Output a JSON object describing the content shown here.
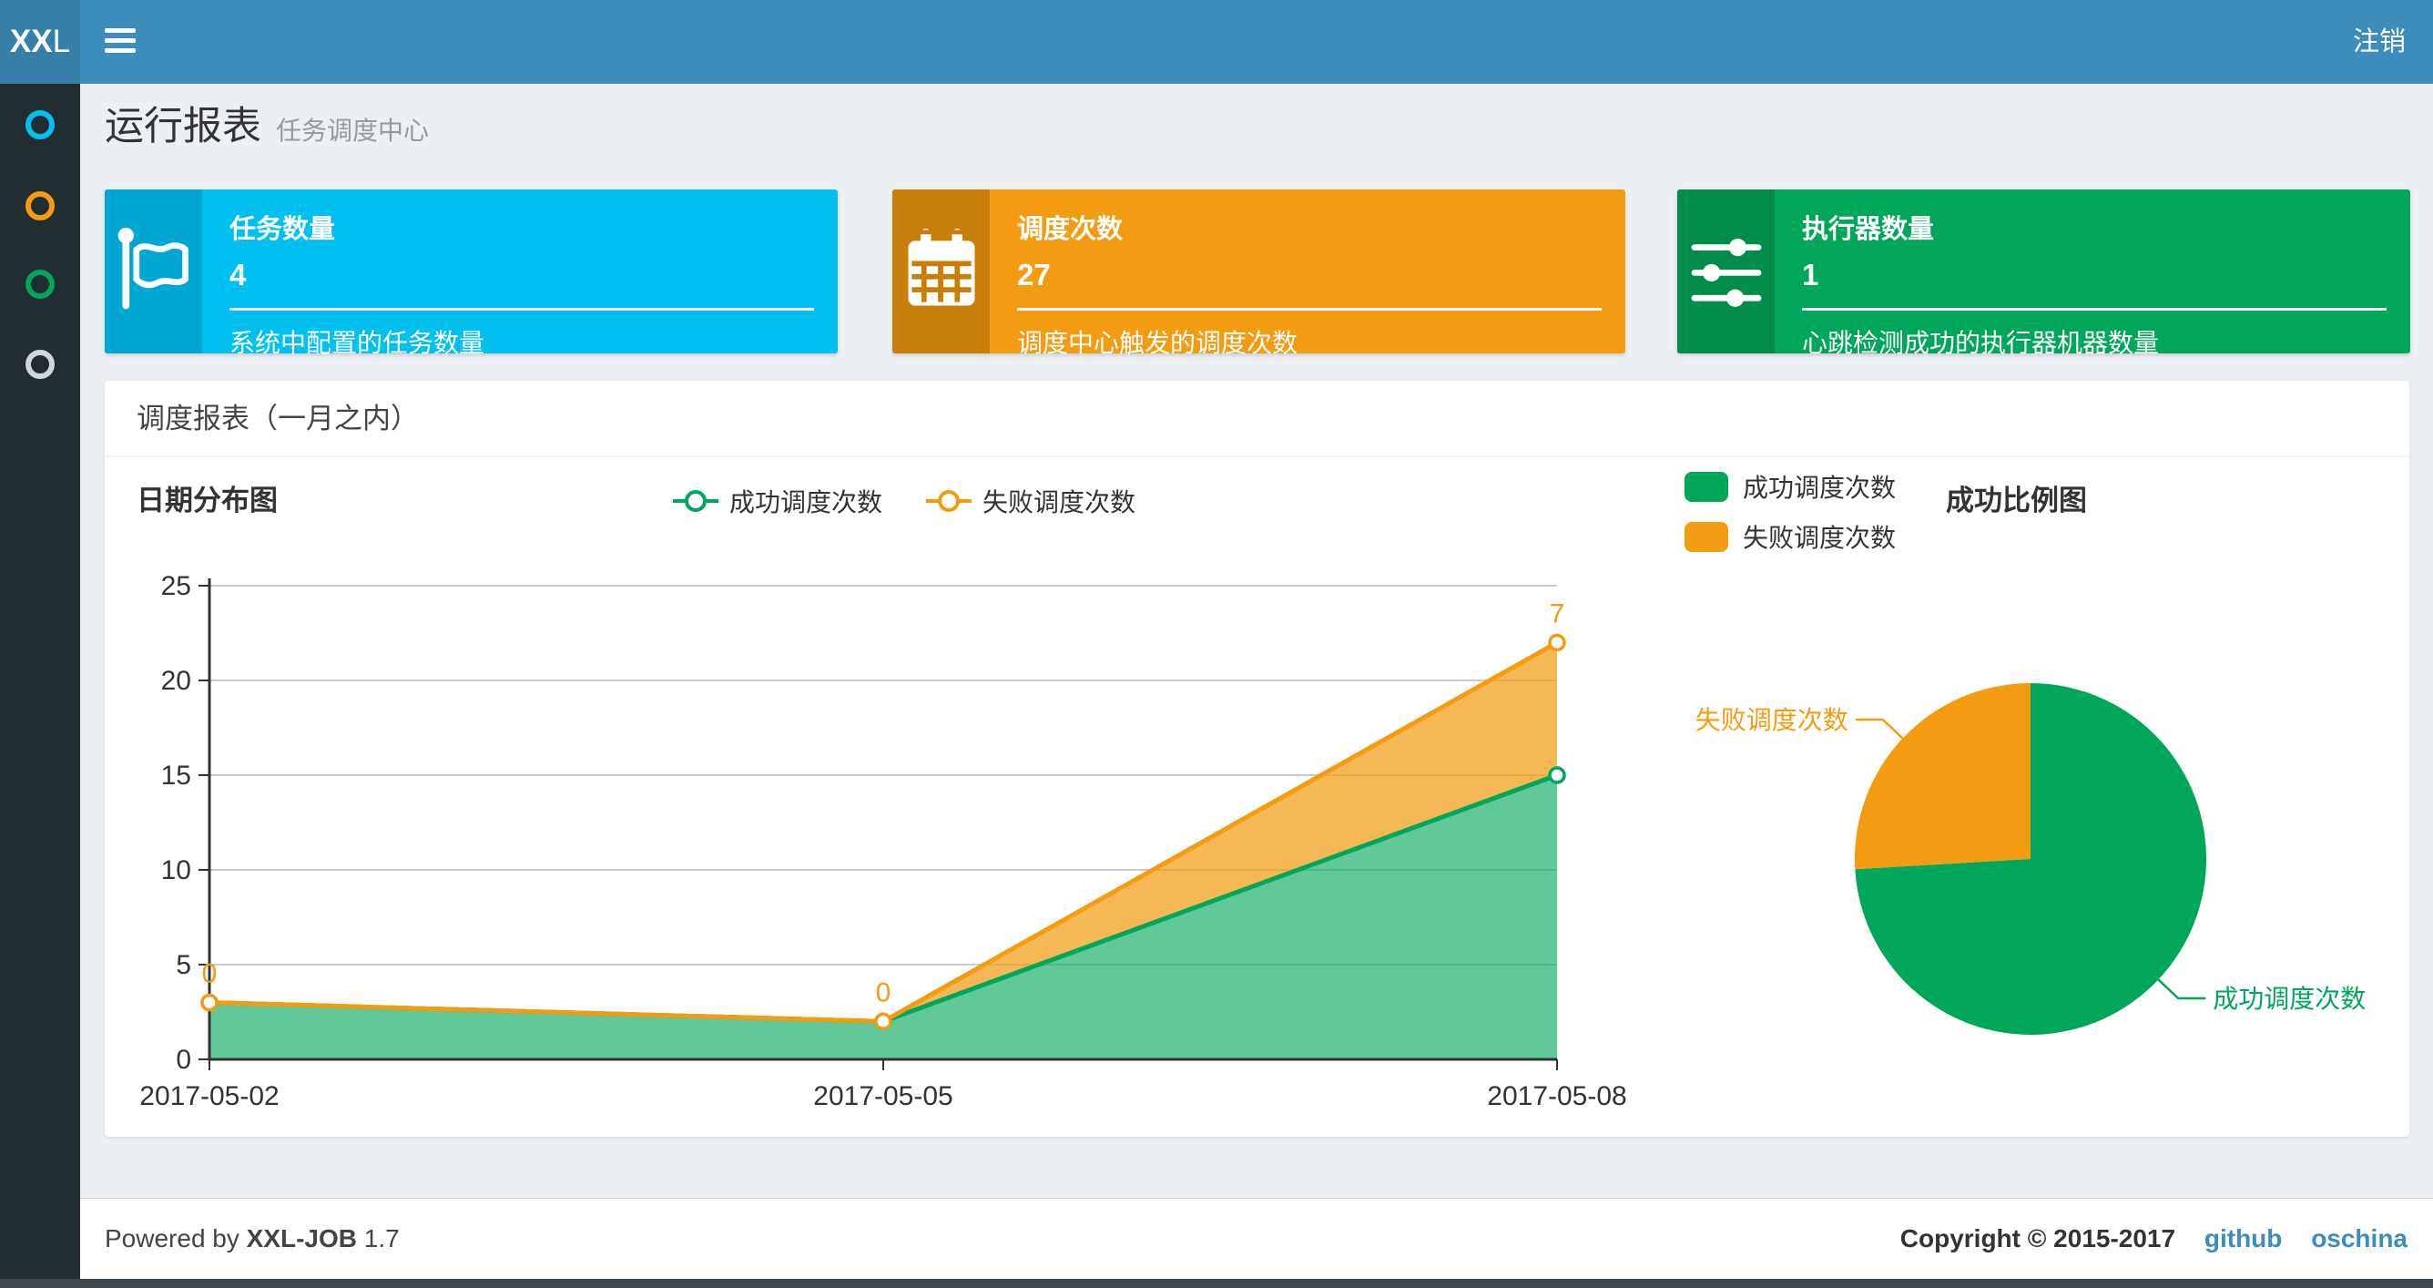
{
  "navbar": {
    "logo_bold": "XX",
    "logo_light": "L",
    "logout_label": "注销"
  },
  "sidebar": {
    "items": [
      {
        "icon": "circle-o-icon",
        "color": "#00c0ef"
      },
      {
        "icon": "circle-o-icon",
        "color": "#f39c12"
      },
      {
        "icon": "circle-o-icon",
        "color": "#00a65a"
      },
      {
        "icon": "circle-o-icon",
        "color": "#d2d6de"
      }
    ]
  },
  "page_header": {
    "title": "运行报表",
    "subtitle": "任务调度中心"
  },
  "info_boxes": [
    {
      "icon": "flag-icon",
      "label": "任务数量",
      "value": "4",
      "desc": "系统中配置的任务数量",
      "bg": "#00c0ef",
      "icon_bg": "#00a7d0"
    },
    {
      "icon": "calendar-icon",
      "label": "调度次数",
      "value": "27",
      "desc": "调度中心触发的调度次数",
      "bg": "#f39c12",
      "icon_bg": "#c87f0a"
    },
    {
      "icon": "sliders-icon",
      "label": "执行器数量",
      "value": "1",
      "desc": "心跳检测成功的执行器机器数量",
      "bg": "#00a65a",
      "icon_bg": "#008d4c"
    }
  ],
  "panel": {
    "title": "调度报表（一月之内）"
  },
  "chart_data": [
    {
      "type": "area",
      "title": "日期分布图",
      "stacked": true,
      "categories": [
        "2017-05-02",
        "2017-05-05",
        "2017-05-08"
      ],
      "series": [
        {
          "name": "成功调度次数",
          "values": [
            3,
            2,
            15
          ],
          "color": "#00a65a",
          "area": "rgba(0,166,90,0.62)"
        },
        {
          "name": "失败调度次数",
          "values": [
            0,
            0,
            7
          ],
          "color": "#f39c12",
          "area": "rgba(243,156,18,0.72)"
        }
      ],
      "stacked_totals": [
        3,
        2,
        22
      ],
      "point_labels": [
        "0",
        "0",
        "7"
      ],
      "ylim": [
        0,
        25
      ],
      "yticks": [
        0,
        5,
        10,
        15,
        20,
        25
      ],
      "grid": true,
      "legend_position": "top-center"
    },
    {
      "type": "pie",
      "title": "成功比例图",
      "slices": [
        {
          "name": "成功调度次数",
          "value": 20,
          "color": "#00a65a"
        },
        {
          "name": "失败调度次数",
          "value": 7,
          "color": "#f39c12"
        }
      ],
      "legend_position": "top-left"
    }
  ],
  "footer": {
    "powered_prefix": "Powered by",
    "brand": "XXL-JOB",
    "version": "1.7",
    "copyright": "Copyright © 2015-2017",
    "links": [
      "github",
      "oschina"
    ]
  }
}
